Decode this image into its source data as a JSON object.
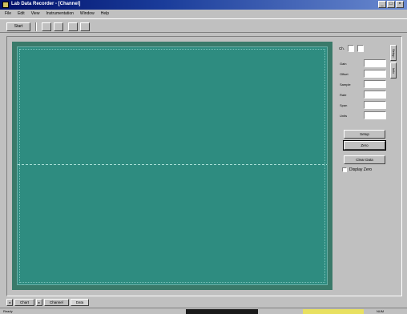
{
  "window": {
    "title": "Lab Data Recorder - [Channel]",
    "minimize_glyph": "_",
    "maximize_glyph": "□",
    "close_glyph": "×"
  },
  "menu": [
    "File",
    "Edit",
    "View",
    "Instrumentation",
    "Window",
    "Help"
  ],
  "toolbar": {
    "start_label": "Start"
  },
  "panel": {
    "header_label": "Ch.",
    "fields": [
      {
        "label": "Gain"
      },
      {
        "label": "Offset"
      },
      {
        "label": "Sample"
      },
      {
        "label": "Rate"
      },
      {
        "label": "Span"
      },
      {
        "label": "Units"
      }
    ],
    "side_tabs": [
      "Setup",
      "Info"
    ],
    "buttons": [
      "Setup",
      "Zero",
      "Clear Data"
    ],
    "checkbox_label": "Display Zero"
  },
  "tabs": [
    "Chart",
    "Channel",
    "Data"
  ],
  "status": {
    "left_text": "Ready",
    "right_text": "NUM"
  }
}
